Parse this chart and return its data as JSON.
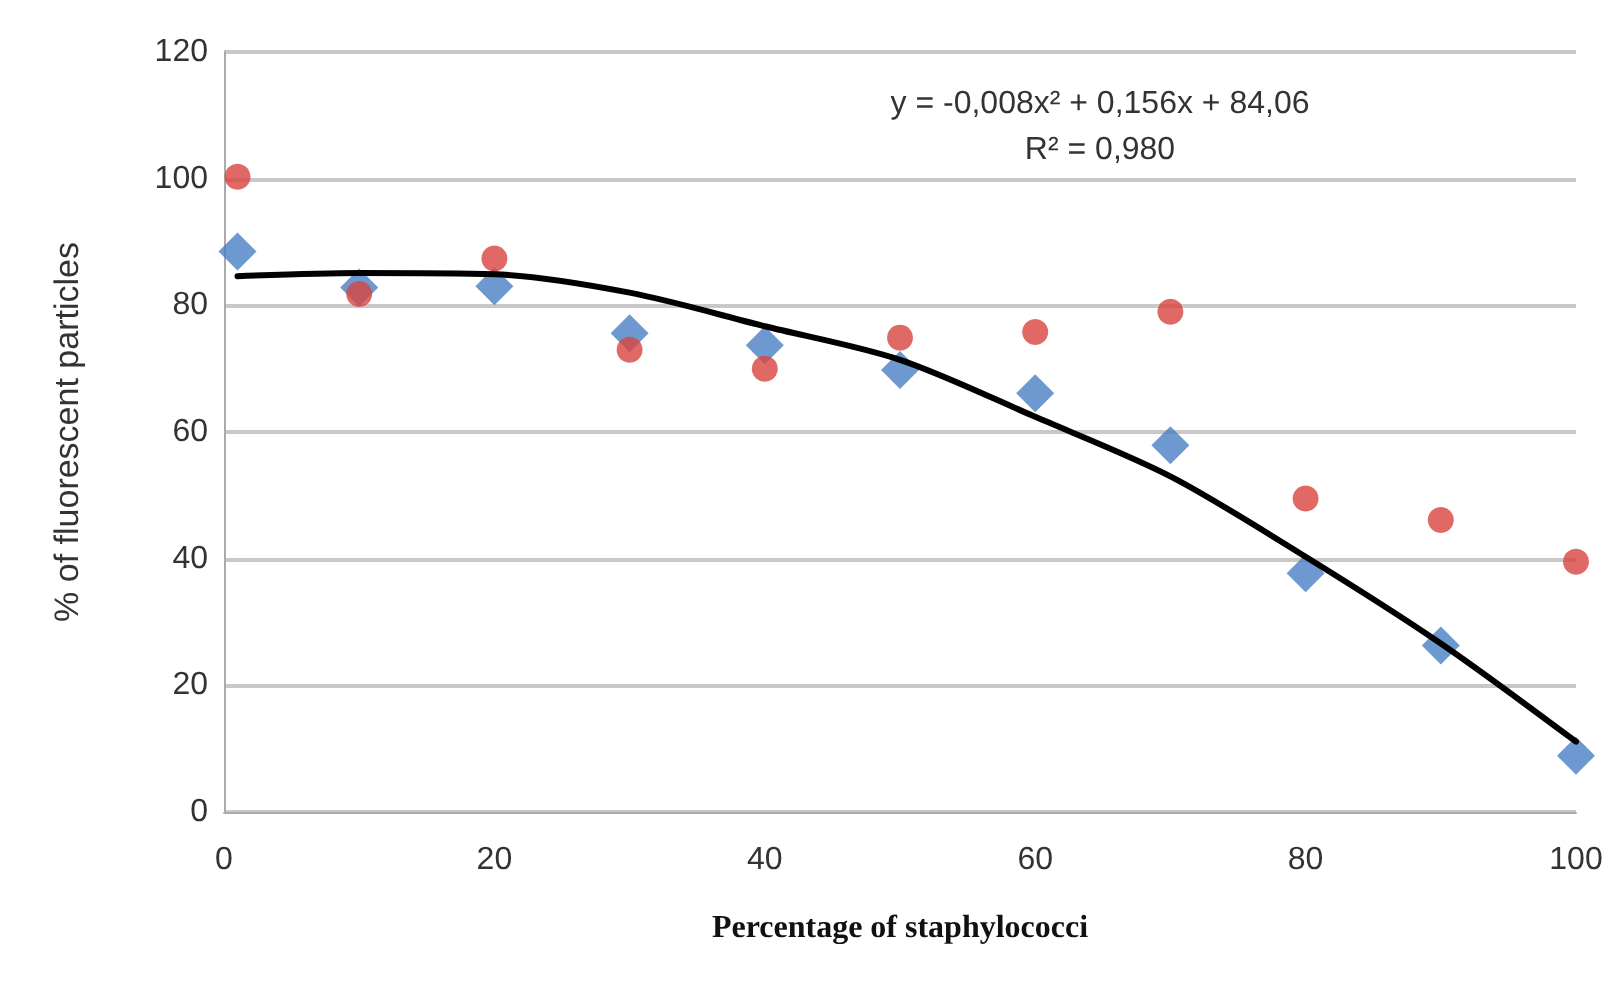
{
  "chart_data": {
    "type": "scatter",
    "xlabel": "Percentage of staphylococci",
    "ylabel": "% of fluorescent particles",
    "annotations": [
      "y = -0,008x² + 0,156x + 84,06",
      "R² = 0,980"
    ],
    "series": [
      {
        "color": "#4a7fc4",
        "marker": "diamond",
        "x": [
          1,
          10,
          20,
          30,
          40,
          50,
          60,
          70,
          80,
          90,
          100
        ],
        "values": [
          88.5,
          82.8,
          83,
          75.6,
          73.7,
          69.8,
          66.1,
          57.9,
          37.7,
          26.3,
          8.9
        ]
      },
      {
        "color": "#d84340",
        "marker": "circle",
        "x": [
          1,
          10,
          20,
          30,
          40,
          50,
          60,
          70,
          80,
          90,
          100
        ],
        "values": [
          100.3,
          81.8,
          87.4,
          73,
          70,
          74.9,
          75.8,
          79,
          49.5,
          46.1,
          39.5
        ]
      },
      {
        "type": "line",
        "color": "#000000",
        "marker": "none",
        "line_style": "solid",
        "x": [
          1,
          10,
          20,
          30,
          40,
          50,
          60,
          70,
          80,
          90,
          100
        ],
        "values": [
          84.6,
          85.1,
          84.9,
          82,
          76.7,
          71.4,
          62.4,
          53,
          40.3,
          26.6,
          11.1
        ]
      }
    ],
    "xlim": [
      0,
      100
    ],
    "xticks": [
      0,
      20,
      40,
      60,
      80,
      100
    ],
    "ylim": [
      0,
      120
    ],
    "yticks": [
      0,
      20,
      40,
      60,
      80,
      100,
      120
    ],
    "grid": "y"
  }
}
